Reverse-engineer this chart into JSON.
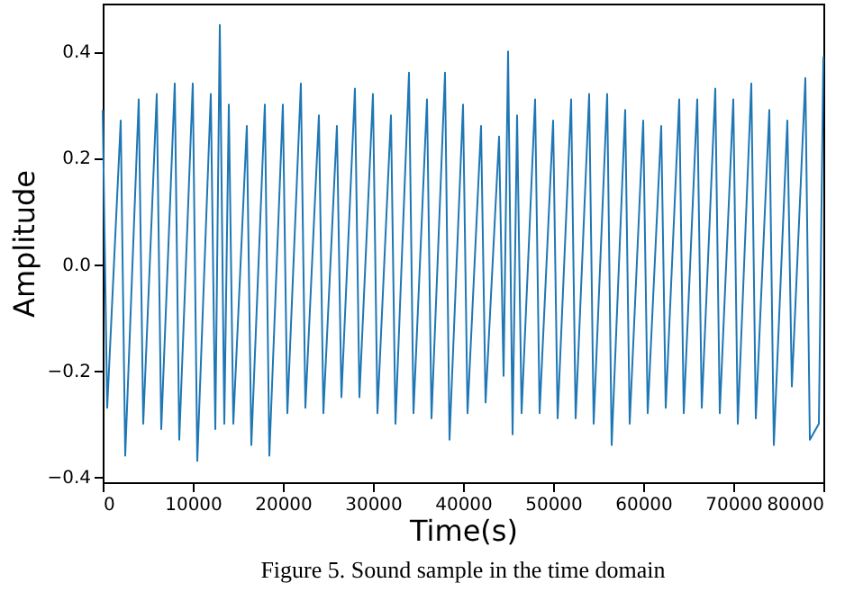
{
  "chart_data": {
    "type": "line",
    "xlabel": "Time(s)",
    "ylabel": "Amplitude",
    "annotations": [
      "Figure 5. Sound sample in the time domain"
    ],
    "x": [
      0,
      500,
      2000,
      2500,
      4000,
      4500,
      6000,
      6500,
      8000,
      8500,
      10000,
      10500,
      12000,
      12500,
      13000,
      13500,
      14000,
      14500,
      16000,
      16500,
      18000,
      18500,
      20000,
      20500,
      22000,
      22500,
      24000,
      24500,
      26000,
      26500,
      28000,
      28500,
      30000,
      30500,
      32000,
      32500,
      34000,
      34500,
      36000,
      36500,
      38000,
      38500,
      40000,
      40500,
      42000,
      42500,
      44000,
      44500,
      45000,
      45500,
      46000,
      46500,
      48000,
      48500,
      50000,
      50500,
      52000,
      52500,
      54000,
      54500,
      56000,
      56500,
      58000,
      58500,
      60000,
      60500,
      62000,
      62500,
      64000,
      64500,
      66000,
      66500,
      68000,
      68500,
      70000,
      70500,
      72000,
      72500,
      74000,
      74500,
      76000,
      76500,
      78000,
      78500,
      79500,
      80000
    ],
    "series": [
      {
        "color": "#1f77b4",
        "values": [
          0.29,
          -0.27,
          0.27,
          -0.36,
          0.31,
          -0.3,
          0.32,
          -0.31,
          0.34,
          -0.33,
          0.34,
          -0.37,
          0.32,
          -0.31,
          0.45,
          -0.3,
          0.3,
          -0.3,
          0.26,
          -0.34,
          0.3,
          -0.36,
          0.3,
          -0.28,
          0.34,
          -0.27,
          0.28,
          -0.28,
          0.26,
          -0.25,
          0.33,
          -0.25,
          0.32,
          -0.28,
          0.28,
          -0.3,
          0.36,
          -0.28,
          0.31,
          -0.29,
          0.36,
          -0.33,
          0.3,
          -0.28,
          0.26,
          -0.26,
          0.24,
          -0.21,
          0.4,
          -0.32,
          0.28,
          -0.28,
          0.31,
          -0.28,
          0.27,
          -0.29,
          0.31,
          -0.29,
          0.32,
          -0.3,
          0.32,
          -0.34,
          0.29,
          -0.3,
          0.27,
          -0.28,
          0.26,
          -0.27,
          0.31,
          -0.28,
          0.31,
          -0.27,
          0.33,
          -0.28,
          0.31,
          -0.3,
          0.34,
          -0.29,
          0.29,
          -0.34,
          0.27,
          -0.23,
          0.35,
          -0.33,
          -0.3,
          0.39
        ]
      }
    ],
    "xlim": [
      0,
      80000
    ],
    "xticks": [
      0,
      10000,
      20000,
      30000,
      40000,
      50000,
      60000,
      70000,
      80000
    ],
    "ylim": [
      -0.41,
      0.49
    ],
    "yticks": [
      -0.4,
      -0.2,
      {
        "value": 0,
        "label": "0.0"
      },
      0.2,
      0.4
    ],
    "grid": false,
    "marker": "none",
    "line_style": "solid"
  }
}
